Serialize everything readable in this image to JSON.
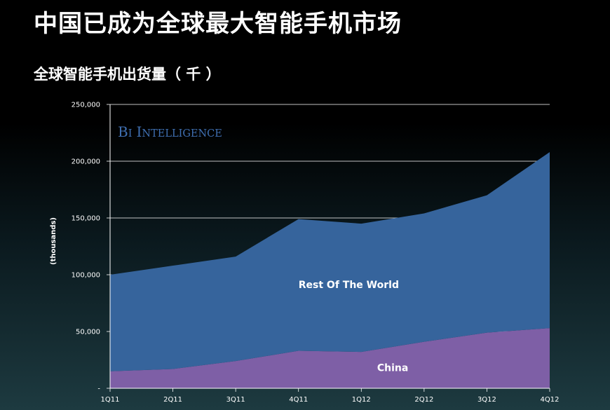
{
  "slide": {
    "title": "中国已成为全球最大智能手机市场"
  },
  "chart_data": {
    "type": "area",
    "stacked": true,
    "subtitle": "全球智能手机出货量（ 千 ）",
    "ylabel": "(thousands)",
    "xlabel": "",
    "categories": [
      "1Q11",
      "2Q11",
      "3Q11",
      "4Q11",
      "1Q12",
      "2Q12",
      "3Q12",
      "4Q12"
    ],
    "ylim": [
      0,
      250000
    ],
    "yticks": [
      0,
      50000,
      100000,
      150000,
      200000,
      250000
    ],
    "ytick_labels": [
      "-",
      "50,000",
      "100,000",
      "150,000",
      "200,000",
      "250,000"
    ],
    "grid": true,
    "watermark": "BI Intelligence",
    "series": [
      {
        "name": "China",
        "values": [
          15000,
          17000,
          24000,
          33000,
          32000,
          41000,
          49000,
          53000
        ],
        "color": "#7e5fa6"
      },
      {
        "name": "Rest Of The World",
        "values": [
          85000,
          91000,
          92000,
          116000,
          113000,
          113000,
          121000,
          155000
        ],
        "color": "#36649c"
      }
    ]
  }
}
